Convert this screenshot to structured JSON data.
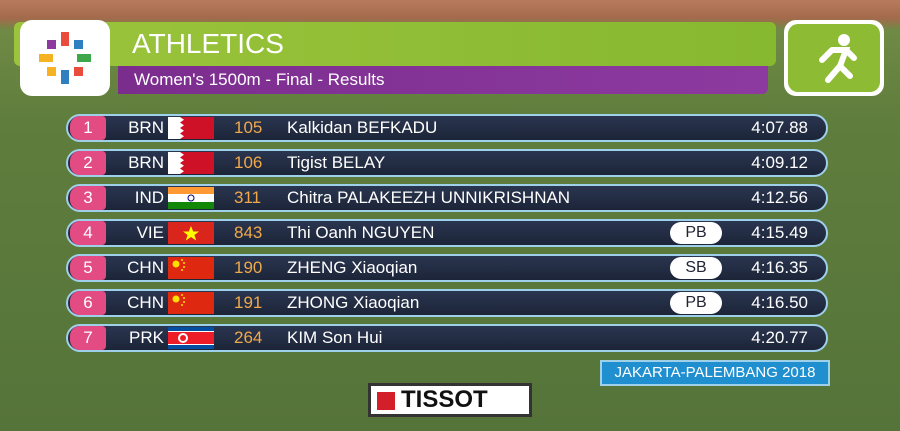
{
  "header": {
    "title": "ATHLETICS",
    "subtitle": "Women's 1500m - Final - Results"
  },
  "rows": [
    {
      "rank": 1,
      "country": "BRN",
      "bib": 105,
      "name": "Kalkidan BEFKADU",
      "time": "4:07.88"
    },
    {
      "rank": 2,
      "country": "BRN",
      "bib": 106,
      "name": "Tigist BELAY",
      "time": "4:09.12"
    },
    {
      "rank": 3,
      "country": "IND",
      "bib": 311,
      "name": "Chitra PALAKEEZH UNNIKRISHNAN",
      "time": "4:12.56"
    },
    {
      "rank": 4,
      "country": "VIE",
      "bib": 843,
      "name": "Thi Oanh NGUYEN",
      "badge": "PB",
      "time": "4:15.49"
    },
    {
      "rank": 5,
      "country": "CHN",
      "bib": 190,
      "name": "ZHENG Xiaoqian",
      "badge": "SB",
      "time": "4:16.35"
    },
    {
      "rank": 6,
      "country": "CHN",
      "bib": 191,
      "name": "ZHONG Xiaoqian",
      "badge": "PB",
      "time": "4:16.50"
    },
    {
      "rank": 7,
      "country": "PRK",
      "bib": 264,
      "name": "KIM Son Hui",
      "time": "4:20.77"
    }
  ],
  "footer": {
    "venue": "JAKARTA-PALEMBANG 2018",
    "sponsor": "TISSOT"
  }
}
